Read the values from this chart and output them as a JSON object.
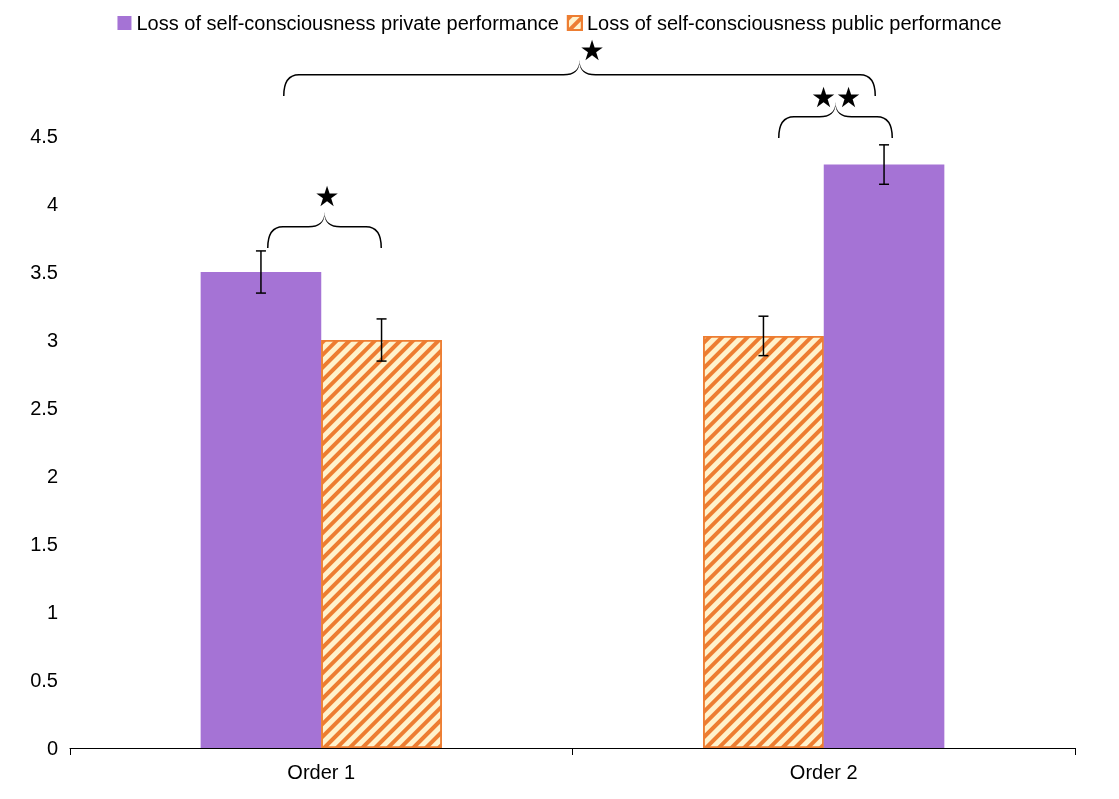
{
  "chart_data": {
    "type": "bar",
    "categories": [
      "Order 1",
      "Order 2"
    ],
    "series": [
      {
        "name": "Loss of self-consciousness private performance",
        "color": "#a573d5",
        "values": [
          3.5,
          null
        ],
        "errors": [
          0.155,
          null
        ]
      },
      {
        "name": "Loss of self-consciousness public performance",
        "color": "#ed7d31",
        "values": [
          3.0,
          3.03
        ],
        "errors": [
          0.155,
          0.145
        ]
      },
      {
        "color": "#a573d5",
        "values": [
          null,
          4.29
        ],
        "errors": [
          null,
          0.145
        ]
      }
    ],
    "ylim": [
      0,
      4.5
    ],
    "yticks": [
      0,
      0.5,
      1,
      1.5,
      2,
      2.5,
      3,
      3.5,
      4,
      4.5
    ],
    "grid": false,
    "legend": "top",
    "annotations": [
      "★",
      "★★",
      "★"
    ]
  }
}
